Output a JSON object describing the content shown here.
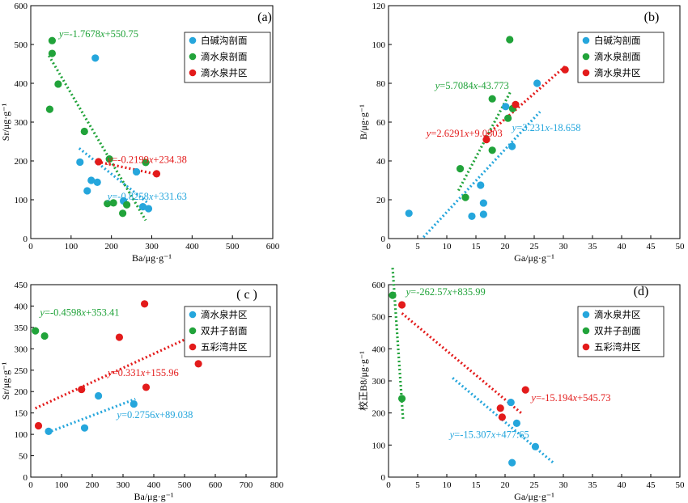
{
  "colors": {
    "blue": "#25a6dc",
    "green": "#21a33a",
    "red": "#e31b1b"
  },
  "chart_data": [
    {
      "id": "a",
      "type": "scatter",
      "label": "(a)",
      "xlabel": "Ba/μg·g⁻¹",
      "ylabel": "Sr/μg·g⁻¹",
      "xlim": [
        0,
        600
      ],
      "ylim": [
        0,
        600
      ],
      "xticks": [
        0,
        100,
        200,
        300,
        400,
        500,
        600
      ],
      "yticks": [
        0,
        100,
        200,
        300,
        400,
        500,
        600
      ],
      "series": [
        {
          "name": "白碱沟剖面",
          "color": "blue",
          "points": [
            [
              160,
              465
            ],
            [
              122,
              197
            ],
            [
              140,
              123
            ],
            [
              150,
              150
            ],
            [
              165,
              145
            ],
            [
              230,
              97
            ],
            [
              262,
              172
            ],
            [
              278,
              82
            ],
            [
              292,
              77
            ]
          ],
          "trend": {
            "x": [
              120,
              290
            ],
            "text": "y=-0.8258x+331.63",
            "tx": 190,
            "ty": 100
          }
        },
        {
          "name": "滴水泉剖面",
          "color": "green",
          "points": [
            [
              53,
              510
            ],
            [
              53,
              477
            ],
            [
              68,
              398
            ],
            [
              47,
              333
            ],
            [
              133,
              276
            ],
            [
              195,
              205
            ],
            [
              285,
              196
            ],
            [
              190,
              90
            ],
            [
              205,
              92
            ],
            [
              228,
              65
            ],
            [
              238,
              87
            ]
          ],
          "trend": {
            "x": [
              45,
              285
            ],
            "text": "y=-1.7678x+550.75",
            "tx": 70,
            "ty": 519
          }
        },
        {
          "name": "滴水泉井区",
          "color": "red",
          "points": [
            [
              168,
              198
            ],
            [
              312,
              167
            ]
          ],
          "trend": {
            "x": [
              165,
              315
            ],
            "text": "y=-0.2199x+234.38",
            "tx": 190,
            "ty": 195
          }
        }
      ]
    },
    {
      "id": "b",
      "type": "scatter",
      "label": "(b)",
      "xlabel": "Ga/μg·g⁻¹",
      "ylabel": "B/μg·g⁻¹",
      "xlim": [
        0,
        50
      ],
      "ylim": [
        0,
        120
      ],
      "xticks": [
        0,
        5,
        10,
        15,
        20,
        25,
        30,
        35,
        40,
        45,
        50
      ],
      "yticks": [
        0,
        20,
        40,
        60,
        80,
        100,
        120
      ],
      "series": [
        {
          "name": "白碱沟剖面",
          "color": "blue",
          "points": [
            [
              3.5,
              13
            ],
            [
              14.3,
              11.5
            ],
            [
              15.8,
              27.5
            ],
            [
              16.3,
              18.3
            ],
            [
              16.3,
              12.5
            ],
            [
              21.2,
              47.5
            ],
            [
              20.1,
              68
            ],
            [
              25.5,
              80
            ]
          ],
          "trend": {
            "x": [
              6,
              26
            ],
            "text": "y=3.231x-18.658",
            "tx": 21.2,
            "ty": 55.5
          }
        },
        {
          "name": "滴水泉剖面",
          "color": "green",
          "points": [
            [
              20.8,
              102.5
            ],
            [
              12.3,
              36
            ],
            [
              13.2,
              21.2
            ],
            [
              17.8,
              72
            ],
            [
              17.8,
              45.5
            ],
            [
              20.5,
              62
            ],
            [
              21.3,
              67
            ]
          ],
          "trend": {
            "x": [
              12,
              21
            ],
            "text": "y=5.7084x-43.773",
            "tx": 8,
            "ty": 77
          }
        },
        {
          "name": "滴水泉井区",
          "color": "red",
          "points": [
            [
              16.8,
              51
            ],
            [
              21.8,
              69
            ],
            [
              30.3,
              87
            ]
          ],
          "trend": {
            "x": [
              16.5,
              30.5
            ],
            "text": "y=2.6291x+9.0303",
            "tx": 6.5,
            "ty": 52.5
          }
        }
      ]
    },
    {
      "id": "c",
      "type": "scatter",
      "label": "( c )",
      "xlabel": "Ba/μg·g⁻¹",
      "ylabel": "Sr/μg·g⁻¹",
      "xlim": [
        0,
        800
      ],
      "ylim": [
        0,
        450
      ],
      "xticks": [
        0,
        100,
        200,
        300,
        400,
        500,
        600,
        700,
        800
      ],
      "yticks": [
        0,
        50,
        100,
        150,
        200,
        250,
        300,
        350,
        400,
        450
      ],
      "series": [
        {
          "name": "滴水泉井区",
          "color": "blue",
          "points": [
            [
              58,
              107
            ],
            [
              175,
              115
            ],
            [
              220,
              190
            ],
            [
              335,
              171
            ]
          ],
          "trend": {
            "x": [
              55,
              340
            ],
            "text": "y=0.2756x+89.038",
            "tx": 280,
            "ty": 138
          }
        },
        {
          "name": "双井子剖面",
          "color": "green",
          "points": [
            [
              15,
              342
            ],
            [
              45,
              330
            ]
          ],
          "trend": null
        },
        {
          "name": "五彩湾井区",
          "color": "red",
          "points": [
            [
              25,
              120
            ],
            [
              165,
              205
            ],
            [
              288,
              327
            ],
            [
              370,
              405
            ],
            [
              375,
              210
            ],
            [
              545,
              265
            ]
          ],
          "trend": {
            "x": [
              15,
              545
            ],
            "text": "y=0.331x+155.96",
            "tx": 250,
            "ty": 236
          }
        }
      ],
      "extra_labels": [
        {
          "text": "y=-0.4598x+353.41",
          "color": "green",
          "tx": 30,
          "ty": 377
        }
      ]
    },
    {
      "id": "d",
      "type": "scatter",
      "label": "(d)",
      "xlabel": "Ga/μg·g⁻¹",
      "ylabel": "校正B8/μg·g⁻¹",
      "xlim": [
        0,
        50
      ],
      "ylim": [
        0,
        600
      ],
      "xticks": [
        0,
        5,
        10,
        15,
        20,
        25,
        30,
        35,
        40,
        45,
        50
      ],
      "yticks": [
        0,
        100,
        200,
        300,
        400,
        500,
        600
      ],
      "series": [
        {
          "name": "滴水泉井区",
          "color": "blue",
          "points": [
            [
              21.0,
              233
            ],
            [
              22.0,
              168
            ],
            [
              25.2,
              95
            ],
            [
              21.2,
              45
            ]
          ],
          "trend": {
            "x": [
              11,
              28.5
            ],
            "text": "y=-15.307x+477.65",
            "tx": 10.5,
            "ty": 122
          }
        },
        {
          "name": "双井子剖面",
          "color": "green",
          "points": [
            [
              0.7,
              567
            ],
            [
              2.3,
              245
            ]
          ],
          "trend": {
            "x": [
              0.7,
              2.5
            ],
            "text": "y=-262.57x+835.99",
            "tx": 3.0,
            "ty": 567
          }
        },
        {
          "name": "五彩湾井区",
          "color": "red",
          "points": [
            [
              2.3,
              537
            ],
            [
              19.2,
              215
            ],
            [
              19.5,
              187
            ],
            [
              23.5,
              272
            ]
          ],
          "trend": {
            "x": [
              2.3,
              23
            ],
            "text": "y=-15.194x+545.73",
            "tx": 24.5,
            "ty": 237
          }
        }
      ]
    }
  ]
}
